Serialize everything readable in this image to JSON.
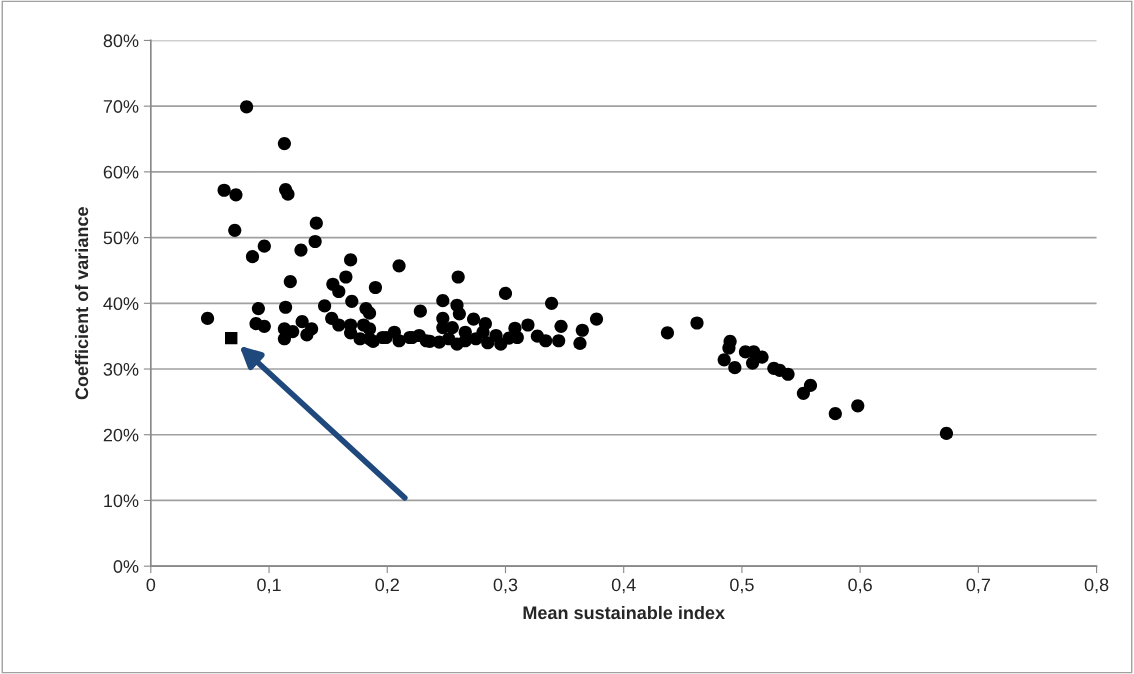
{
  "chart_data": {
    "type": "scatter",
    "xlabel": "Mean sustainable index",
    "ylabel": "Coefficient of variance",
    "xlim": [
      0,
      0.8
    ],
    "ylim": [
      0,
      80
    ],
    "xticks": [
      {
        "value": 0,
        "label": "0"
      },
      {
        "value": 0.1,
        "label": "0,1"
      },
      {
        "value": 0.2,
        "label": "0,2"
      },
      {
        "value": 0.3,
        "label": "0,3"
      },
      {
        "value": 0.4,
        "label": "0,4"
      },
      {
        "value": 0.5,
        "label": "0,5"
      },
      {
        "value": 0.6,
        "label": "0,6"
      },
      {
        "value": 0.7,
        "label": "0,7"
      },
      {
        "value": 0.8,
        "label": "0,8"
      }
    ],
    "yticks": [
      {
        "value": 0,
        "label": "0%"
      },
      {
        "value": 10,
        "label": "10%"
      },
      {
        "value": 20,
        "label": "20%"
      },
      {
        "value": 30,
        "label": "30%"
      },
      {
        "value": 40,
        "label": "40%"
      },
      {
        "value": 50,
        "label": "50%"
      },
      {
        "value": 60,
        "label": "60%"
      },
      {
        "value": 70,
        "label": "70%"
      },
      {
        "value": 80,
        "label": "80%"
      }
    ],
    "grid": "y",
    "legend": false,
    "series": [
      {
        "color": "#000000",
        "marker": "circle",
        "x": [
          0.081,
          0.113,
          0.062,
          0.072,
          0.114,
          0.116,
          0.14,
          0.139,
          0.071,
          0.096,
          0.086,
          0.127,
          0.169,
          0.21,
          0.118,
          0.165,
          0.154,
          0.159,
          0.17,
          0.19,
          0.182,
          0.185,
          0.147,
          0.091,
          0.114,
          0.048,
          0.089,
          0.096,
          0.113,
          0.12,
          0.113,
          0.128,
          0.136,
          0.132,
          0.153,
          0.159,
          0.169,
          0.169,
          0.18,
          0.185,
          0.185,
          0.196,
          0.206,
          0.26,
          0.3,
          0.247,
          0.339,
          0.228,
          0.259,
          0.261,
          0.247,
          0.273,
          0.283,
          0.247,
          0.319,
          0.308,
          0.347,
          0.377,
          0.365,
          0.327,
          0.334,
          0.345,
          0.363,
          0.437,
          0.462,
          0.21,
          0.219,
          0.227,
          0.236,
          0.244,
          0.252,
          0.259,
          0.266,
          0.275,
          0.285,
          0.292,
          0.296,
          0.303,
          0.31,
          0.266,
          0.255,
          0.281,
          0.177,
          0.188,
          0.199,
          0.221,
          0.233,
          0.49,
          0.489,
          0.485,
          0.494,
          0.503,
          0.51,
          0.509,
          0.517,
          0.527,
          0.532,
          0.539,
          0.558,
          0.552,
          0.579,
          0.598,
          0.673
        ],
        "values": [
          69.9,
          64.3,
          57.2,
          56.5,
          57.3,
          56.6,
          52.2,
          49.4,
          51.1,
          48.7,
          47.1,
          48.1,
          46.6,
          45.7,
          43.3,
          44.0,
          42.9,
          41.8,
          40.3,
          42.4,
          39.2,
          38.5,
          39.6,
          39.2,
          39.4,
          37.7,
          36.9,
          36.5,
          36.1,
          35.7,
          34.6,
          37.2,
          36.1,
          35.2,
          37.7,
          36.7,
          36.7,
          35.5,
          36.7,
          36.1,
          34.6,
          34.8,
          35.6,
          44.0,
          41.5,
          40.4,
          40.0,
          38.8,
          39.7,
          38.4,
          37.7,
          37.6,
          36.9,
          36.3,
          36.7,
          36.2,
          36.5,
          37.6,
          35.9,
          35.0,
          34.3,
          34.3,
          33.9,
          35.5,
          37.0,
          34.3,
          34.8,
          35.1,
          34.2,
          34.1,
          34.6,
          33.8,
          34.3,
          34.6,
          34.0,
          35.1,
          33.8,
          34.7,
          34.8,
          35.6,
          36.3,
          35.6,
          34.6,
          34.2,
          34.8,
          34.8,
          34.3,
          34.2,
          33.2,
          31.4,
          30.2,
          32.6,
          32.6,
          30.9,
          31.8,
          30.1,
          29.8,
          29.2,
          27.5,
          26.3,
          23.2,
          24.4,
          20.2
        ]
      },
      {
        "color": "#000000",
        "marker": "square",
        "x": [
          0.068
        ],
        "values": [
          34.7
        ]
      }
    ]
  }
}
